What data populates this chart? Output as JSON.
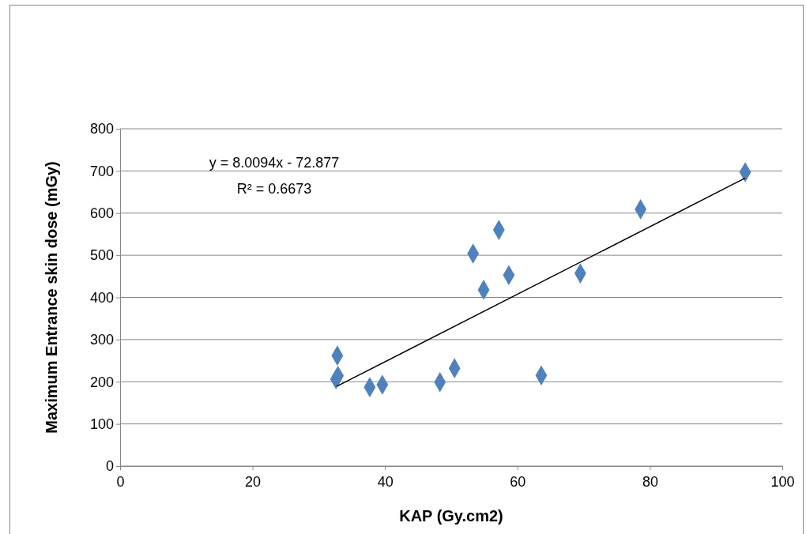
{
  "chart_data": {
    "type": "scatter",
    "xlabel": "KAP (Gy.cm2)",
    "ylabel": "Maximum Entrance skin dose (mGy)",
    "xlim": [
      0,
      100
    ],
    "xticks": [
      0,
      20,
      40,
      60,
      80,
      100
    ],
    "ylim": [
      0,
      800
    ],
    "yticks": [
      0,
      100,
      200,
      300,
      400,
      500,
      600,
      700,
      800
    ],
    "grid": "y",
    "annotations": [
      "y = 8.0094x - 72.877",
      "R² = 0.6673"
    ],
    "series": [
      {
        "marker": "diamond",
        "color": "#4f81bd",
        "x": [
          32.8,
          32.6,
          32.9,
          37.7,
          39.6,
          48.3,
          50.5,
          53.3,
          54.9,
          57.2,
          58.7,
          63.6,
          69.5,
          78.6,
          94.4
        ],
        "values": [
          262,
          206,
          214,
          187,
          193,
          199,
          232,
          504,
          418,
          560,
          453,
          215,
          457,
          609,
          697
        ]
      },
      {
        "type": "line",
        "color": "#000000",
        "line_style": "solid",
        "x": [
          32.7,
          94.4
        ],
        "values": [
          189,
          683
        ]
      }
    ]
  }
}
